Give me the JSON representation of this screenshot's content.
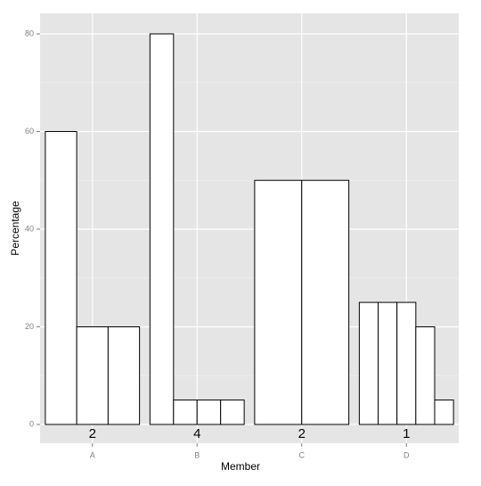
{
  "chart_data": {
    "type": "dodged-bar",
    "x_label": "Member",
    "y_label": "Percentage",
    "categories": [
      "A",
      "B",
      "C",
      "D"
    ],
    "values": [
      [
        60,
        20,
        20
      ],
      [
        80,
        5,
        5,
        5
      ],
      [
        50,
        50
      ],
      [
        25,
        25,
        25,
        20,
        5
      ]
    ],
    "color": "#ffffff",
    "edge_color": "#000000",
    "annotations": [
      {
        "text": "2",
        "y": -2
      },
      {
        "text": "4",
        "y": -2
      },
      {
        "text": "2",
        "y": -2
      },
      {
        "text": "1",
        "y": -2
      }
    ],
    "ylim": [
      -3.84,
      84.2
    ],
    "yticks": [
      0,
      20,
      40,
      60,
      80
    ],
    "minor_yticks": [
      10,
      30,
      50,
      70
    ],
    "grid": true
  }
}
